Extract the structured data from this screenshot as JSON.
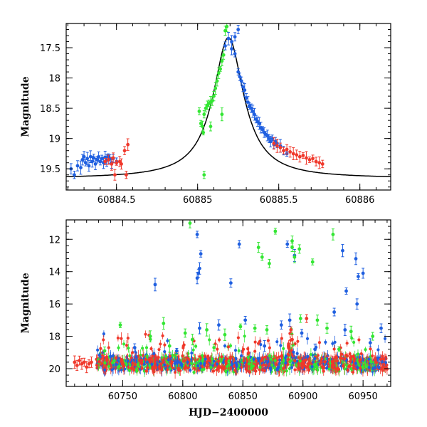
{
  "chart_data": [
    {
      "type": "scatter",
      "title": "",
      "xlabel": "",
      "ylabel": "Magnitude",
      "xlim": [
        60884.19,
        60886.19
      ],
      "ylim": [
        19.85,
        17.1
      ],
      "y_inverted": true,
      "grid": false,
      "x_ticks": [
        60884.5,
        60885,
        60885.5,
        60886
      ],
      "x_tick_labels": [
        "60884.5",
        "60885",
        "60885.5",
        "60886"
      ],
      "y_ticks": [
        17.5,
        18,
        18.5,
        19,
        19.5
      ],
      "y_tick_labels": [
        "17.5",
        "18",
        "18.5",
        "19",
        "19.5"
      ],
      "model_curve": {
        "name": "model",
        "color": "#000000",
        "peak_time": 60885.19,
        "peak_mag": 17.33,
        "baseline_mag": 19.66
      },
      "series": [
        {
          "name": "blue",
          "color": "#1f5fe0",
          "points": [
            [
              60884.22,
              19.5
            ],
            [
              60884.24,
              19.6
            ],
            [
              60884.26,
              19.45
            ],
            [
              60884.28,
              19.48
            ],
            [
              60884.29,
              19.35
            ],
            [
              60884.3,
              19.3
            ],
            [
              60884.31,
              19.4
            ],
            [
              60884.32,
              19.33
            ],
            [
              60884.33,
              19.45
            ],
            [
              60884.34,
              19.3
            ],
            [
              60884.35,
              19.38
            ],
            [
              60884.36,
              19.32
            ],
            [
              60884.37,
              19.42
            ],
            [
              60884.38,
              19.35
            ],
            [
              60884.39,
              19.3
            ],
            [
              60884.4,
              19.38
            ],
            [
              60884.41,
              19.33
            ],
            [
              60884.42,
              19.4
            ],
            [
              60884.43,
              19.31
            ],
            [
              60884.44,
              19.36
            ],
            [
              60884.45,
              19.3
            ],
            [
              60884.46,
              19.34
            ],
            [
              60884.47,
              19.4
            ],
            [
              60884.48,
              19.33
            ],
            [
              60884.5,
              19.38
            ],
            [
              60885.17,
              17.47
            ],
            [
              60885.19,
              17.35
            ],
            [
              60885.21,
              17.4
            ],
            [
              60885.23,
              17.32
            ],
            [
              60885.25,
              17.2
            ],
            [
              60885.21,
              17.52
            ],
            [
              60885.23,
              17.6
            ],
            [
              60885.25,
              17.9
            ],
            [
              60885.26,
              17.98
            ],
            [
              60885.27,
              18.05
            ],
            [
              60885.28,
              18.15
            ],
            [
              60885.29,
              18.2
            ],
            [
              60885.3,
              18.33
            ],
            [
              60885.31,
              18.4
            ],
            [
              60885.32,
              18.46
            ],
            [
              60885.33,
              18.5
            ],
            [
              60885.34,
              18.55
            ],
            [
              60885.35,
              18.6
            ],
            [
              60885.36,
              18.68
            ],
            [
              60885.37,
              18.72
            ],
            [
              60885.38,
              18.75
            ],
            [
              60885.39,
              18.82
            ],
            [
              60885.4,
              18.85
            ],
            [
              60885.41,
              18.9
            ],
            [
              60885.42,
              18.93
            ],
            [
              60885.43,
              18.95
            ],
            [
              60885.44,
              19.0
            ],
            [
              60885.45,
              19.05
            ],
            [
              60885.46,
              19.0
            ],
            [
              60885.47,
              19.1
            ],
            [
              60885.48,
              19.05
            ],
            [
              60885.49,
              19.08
            ],
            [
              60885.51,
              19.12
            ],
            [
              60885.53,
              19.2
            ],
            [
              60885.55,
              19.25
            ]
          ]
        },
        {
          "name": "green",
          "color": "#33e633",
          "points": [
            [
              60885.01,
              18.55
            ],
            [
              60885.02,
              18.75
            ],
            [
              60885.03,
              18.8
            ],
            [
              60885.035,
              18.9
            ],
            [
              60885.04,
              18.6
            ],
            [
              60885.05,
              18.5
            ],
            [
              60885.06,
              18.45
            ],
            [
              60885.07,
              18.42
            ],
            [
              60885.08,
              18.4
            ],
            [
              60885.09,
              18.38
            ],
            [
              60885.1,
              18.3
            ],
            [
              60885.11,
              18.17
            ],
            [
              60885.12,
              18.05
            ],
            [
              60885.13,
              17.92
            ],
            [
              60885.14,
              17.85
            ],
            [
              60885.15,
              17.72
            ],
            [
              60885.16,
              17.62
            ],
            [
              60885.17,
              17.22
            ],
            [
              60885.18,
              17.15
            ],
            [
              60885.04,
              19.6
            ],
            [
              60885.08,
              18.8
            ],
            [
              60885.15,
              18.6
            ]
          ]
        },
        {
          "name": "red",
          "color": "#f0382b",
          "points": [
            [
              60884.43,
              19.38
            ],
            [
              60884.45,
              19.35
            ],
            [
              60884.47,
              19.42
            ],
            [
              60884.48,
              19.32
            ],
            [
              60884.5,
              19.4
            ],
            [
              60884.52,
              19.38
            ],
            [
              60884.53,
              19.42
            ],
            [
              60884.55,
              19.2
            ],
            [
              60884.57,
              19.1
            ],
            [
              60884.49,
              19.6
            ],
            [
              60884.56,
              19.6
            ],
            [
              60885.47,
              19.08
            ],
            [
              60885.49,
              19.12
            ],
            [
              60885.51,
              19.15
            ],
            [
              60885.53,
              19.2
            ],
            [
              60885.55,
              19.18
            ],
            [
              60885.57,
              19.22
            ],
            [
              60885.59,
              19.25
            ],
            [
              60885.61,
              19.27
            ],
            [
              60885.63,
              19.3
            ],
            [
              60885.65,
              19.28
            ],
            [
              60885.67,
              19.32
            ],
            [
              60885.69,
              19.35
            ],
            [
              60885.71,
              19.33
            ],
            [
              60885.73,
              19.38
            ],
            [
              60885.75,
              19.4
            ],
            [
              60885.77,
              19.42
            ]
          ]
        }
      ]
    },
    {
      "type": "scatter",
      "title": "",
      "xlabel": "HJD−2400000",
      "ylabel": "Magnitude",
      "xlim": [
        60703,
        60973
      ],
      "ylim": [
        21.1,
        10.8
      ],
      "y_inverted": true,
      "grid": false,
      "x_ticks": [
        60750,
        60800,
        60850,
        60900,
        60950
      ],
      "x_tick_labels": [
        "60750",
        "60800",
        "60850",
        "60900",
        "60950"
      ],
      "y_ticks": [
        12,
        14,
        16,
        18,
        20
      ],
      "y_tick_labels": [
        "12",
        "14",
        "16",
        "18",
        "20"
      ],
      "baseline_band": {
        "x_range": [
          60708,
          60970
        ],
        "center_mag": 19.7,
        "spread_mag": 0.45,
        "peak_time": 60890,
        "peak_mag": 17.3
      },
      "series": [
        {
          "name": "blue",
          "color": "#1f5fe0",
          "points": [
            [
              60777,
              14.8
            ],
            [
              60812,
              11.7
            ],
            [
              60812,
              14.4
            ],
            [
              60813,
              14.1
            ],
            [
              60814,
              13.8
            ],
            [
              60815,
              12.9
            ],
            [
              60840,
              14.7
            ],
            [
              60847,
              12.3
            ],
            [
              60887,
              12.3
            ],
            [
              60893,
              13.0
            ],
            [
              60933,
              12.7
            ],
            [
              60936,
              15.2
            ],
            [
              60944,
              13.2
            ],
            [
              60946,
              14.3
            ],
            [
              60945,
              16.0
            ],
            [
              60950,
              14.1
            ],
            [
              60965,
              17.5
            ],
            [
              60814,
              17.5
            ],
            [
              60830,
              17.3
            ],
            [
              60852,
              17.0
            ],
            [
              60882,
              17.3
            ],
            [
              60889,
              17.0
            ],
            [
              60899,
              17.8
            ],
            [
              60926,
              16.5
            ],
            [
              60935,
              17.6
            ],
            [
              60956,
              18.4
            ],
            [
              60760,
              18.7
            ],
            [
              60795,
              18.9
            ],
            [
              60868,
              18.6
            ],
            [
              60910,
              18.8
            ]
          ]
        },
        {
          "name": "green",
          "color": "#33e633",
          "points": [
            [
              60806,
              11.0
            ],
            [
              60863,
              12.5
            ],
            [
              60866,
              13.1
            ],
            [
              60872,
              13.5
            ],
            [
              60877,
              11.5
            ],
            [
              60891,
              12.1
            ],
            [
              60891,
              12.5
            ],
            [
              60893,
              13.1
            ],
            [
              60897,
              12.6
            ],
            [
              60908,
              13.4
            ],
            [
              60925,
              11.7
            ],
            [
              60748,
              17.3
            ],
            [
              60773,
              18.0
            ],
            [
              60784,
              17.2
            ],
            [
              60802,
              17.8
            ],
            [
              60808,
              18.2
            ],
            [
              60820,
              17.6
            ],
            [
              60835,
              17.9
            ],
            [
              60848,
              17.4
            ],
            [
              60860,
              17.5
            ],
            [
              60870,
              17.6
            ],
            [
              60898,
              16.9
            ],
            [
              60912,
              17.0
            ],
            [
              60920,
              17.5
            ],
            [
              60940,
              17.7
            ],
            [
              60958,
              18.0
            ],
            [
              60735,
              18.9
            ],
            [
              60789,
              18.6
            ],
            [
              60826,
              18.7
            ],
            [
              60930,
              18.8
            ]
          ]
        },
        {
          "name": "red",
          "color": "#f0382b",
          "points": [
            [
              60710,
              19.6
            ],
            [
              60712,
              19.8
            ],
            [
              60714,
              19.5
            ],
            [
              60716,
              19.7
            ],
            [
              60718,
              19.6
            ],
            [
              60720,
              19.9
            ],
            [
              60722,
              19.7
            ],
            [
              60724,
              19.6
            ],
            [
              60903,
              16.9
            ],
            [
              60890,
              17.6
            ],
            [
              60891,
              18.2
            ],
            [
              60888,
              18.6
            ]
          ]
        }
      ]
    }
  ]
}
